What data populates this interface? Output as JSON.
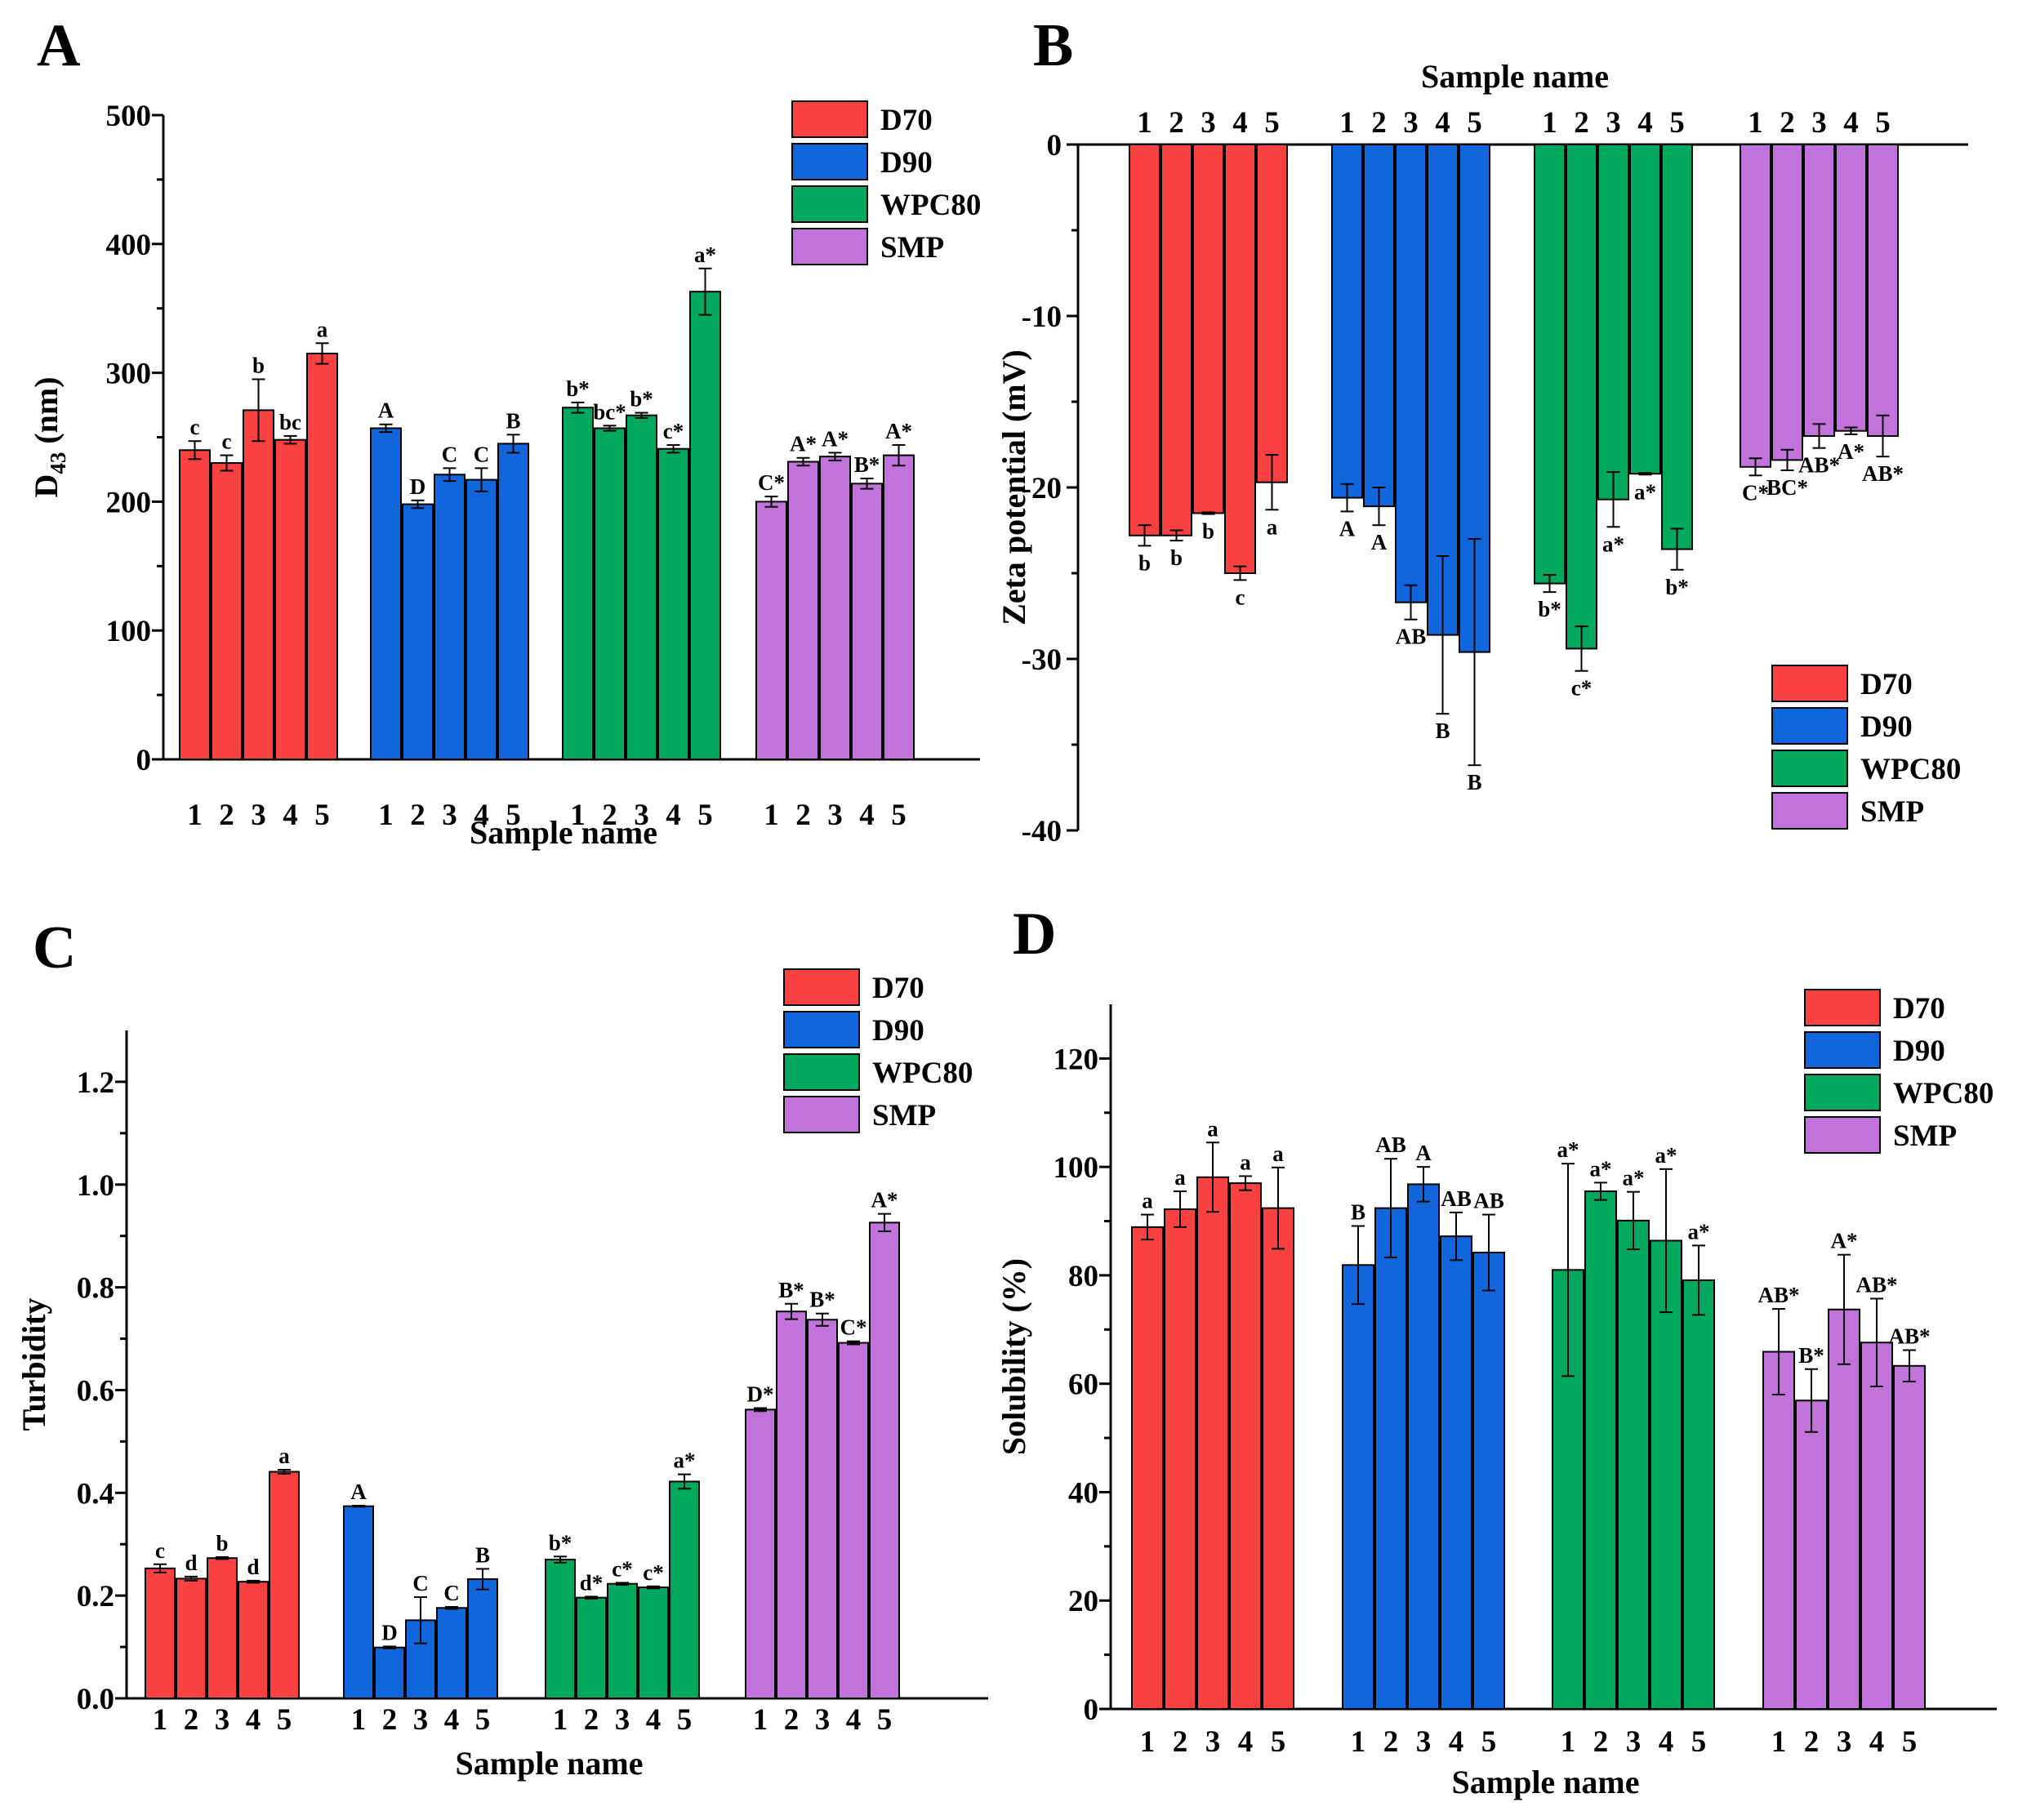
{
  "colors": {
    "D70": "#fa4141",
    "D90": "#1166dc",
    "WPC80": "#03a85f",
    "SMP": "#c273db"
  },
  "chart_data": [
    {
      "panel": "A",
      "type": "bar",
      "xlabel": "Sample name",
      "ylabel_main": "D",
      "ylabel_sub": "43",
      "ylabel_unit": " (nm)",
      "ylim": [
        0,
        500
      ],
      "yticks": [
        "0",
        "100",
        "200",
        "300",
        "400",
        "500"
      ],
      "categories": [
        "1",
        "2",
        "3",
        "4",
        "5"
      ],
      "legend": {
        "placement": "top-right",
        "entries": [
          "D70",
          "D90",
          "WPC80",
          "SMP"
        ]
      },
      "series": [
        {
          "name": "D70",
          "values": [
            240,
            230,
            271,
            248,
            315
          ],
          "errors": [
            7,
            6,
            24,
            3,
            8
          ],
          "letters": [
            "c",
            "c",
            "b",
            "bc",
            "a"
          ]
        },
        {
          "name": "D90",
          "values": [
            257,
            198,
            221,
            217,
            245
          ],
          "errors": [
            3,
            3,
            5,
            9,
            7
          ],
          "letters": [
            "A",
            "D",
            "C",
            "C",
            "B"
          ]
        },
        {
          "name": "WPC80",
          "values": [
            273,
            257,
            267,
            241,
            363
          ],
          "errors": [
            4,
            2,
            2,
            3,
            18
          ],
          "letters": [
            "b*",
            "bc*",
            "b*",
            "c*",
            "a*"
          ]
        },
        {
          "name": "SMP",
          "values": [
            200,
            231,
            235,
            214,
            236
          ],
          "errors": [
            4,
            3,
            3,
            4,
            8
          ],
          "letters": [
            "C*",
            "A*",
            "A*",
            "B*",
            "A*"
          ]
        }
      ]
    },
    {
      "panel": "B",
      "type": "bar",
      "xlabel": "Sample name",
      "ylabel": "Zeta potential (mV)",
      "ylim": [
        -40,
        0
      ],
      "yticks": [
        "0",
        "-10",
        "-20",
        "-30",
        "-40"
      ],
      "categories": [
        "1",
        "2",
        "3",
        "4",
        "5"
      ],
      "legend": {
        "placement": "bottom-right",
        "entries": [
          "D70",
          "D90",
          "WPC80",
          "SMP"
        ]
      },
      "series": [
        {
          "name": "D70",
          "values": [
            -22.8,
            -22.8,
            -21.5,
            -25.0,
            -19.7
          ],
          "errors": [
            0.6,
            0.3,
            0.05,
            0.4,
            1.6
          ],
          "letters": [
            "b",
            "b",
            "b",
            "c",
            "a"
          ]
        },
        {
          "name": "D90",
          "values": [
            -20.6,
            -21.1,
            -26.7,
            -28.6,
            -29.6
          ],
          "errors": [
            0.8,
            1.1,
            1.0,
            4.6,
            6.6
          ],
          "letters": [
            "A",
            "A",
            "AB",
            "B",
            "B"
          ]
        },
        {
          "name": "WPC80",
          "values": [
            -25.6,
            -29.4,
            -20.7,
            -19.2,
            -23.6
          ],
          "errors": [
            0.5,
            1.3,
            1.6,
            0.05,
            1.2
          ],
          "letters": [
            "b*",
            "c*",
            "a*",
            "a*",
            "b*"
          ]
        },
        {
          "name": "SMP",
          "values": [
            -18.8,
            -18.4,
            -17.0,
            -16.7,
            -17.0
          ],
          "errors": [
            0.5,
            0.6,
            0.7,
            0.2,
            1.2
          ],
          "letters": [
            "C*",
            "BC*",
            "AB*",
            "A*",
            "AB*"
          ]
        }
      ]
    },
    {
      "panel": "C",
      "type": "bar",
      "xlabel": "Sample name",
      "ylabel": "Turbidity",
      "ylim": [
        0,
        1.3
      ],
      "yticks": [
        "0.0",
        "0.2",
        "0.4",
        "0.6",
        "0.8",
        "1.0",
        "1.2"
      ],
      "categories": [
        "1",
        "2",
        "3",
        "4",
        "5"
      ],
      "legend": {
        "placement": "top-right",
        "entries": [
          "D70",
          "D90",
          "WPC80",
          "SMP"
        ]
      },
      "series": [
        {
          "name": "D70",
          "values": [
            0.253,
            0.233,
            0.273,
            0.227,
            0.441
          ],
          "errors": [
            0.008,
            0.004,
            0.002,
            0.002,
            0.004
          ],
          "letters": [
            "c",
            "d",
            "b",
            "d",
            "a"
          ]
        },
        {
          "name": "D90",
          "values": [
            0.374,
            0.099,
            0.152,
            0.176,
            0.232
          ],
          "errors": [
            0.001,
            0.002,
            0.045,
            0.002,
            0.02
          ],
          "letters": [
            "A",
            "D",
            "C",
            "C",
            "B"
          ]
        },
        {
          "name": "WPC80",
          "values": [
            0.27,
            0.196,
            0.223,
            0.216,
            0.422
          ],
          "errors": [
            0.006,
            0.002,
            0.002,
            0.002,
            0.014
          ],
          "letters": [
            "b*",
            "d*",
            "c*",
            "c*",
            "a*"
          ]
        },
        {
          "name": "SMP",
          "values": [
            0.562,
            0.753,
            0.737,
            0.692,
            0.926
          ],
          "errors": [
            0.003,
            0.015,
            0.012,
            0.003,
            0.017
          ],
          "letters": [
            "D*",
            "B*",
            "B*",
            "C*",
            "A*"
          ]
        }
      ]
    },
    {
      "panel": "D",
      "type": "bar",
      "xlabel": "Sample name",
      "ylabel": "Solubility (%)",
      "ylim": [
        0,
        130
      ],
      "yticks": [
        "0",
        "20",
        "40",
        "60",
        "80",
        "100",
        "120"
      ],
      "categories": [
        "1",
        "2",
        "3",
        "4",
        "5"
      ],
      "legend": {
        "placement": "top-right",
        "entries": [
          "D70",
          "D90",
          "WPC80",
          "SMP"
        ]
      },
      "series": [
        {
          "name": "D70",
          "values": [
            88.9,
            92.2,
            98.1,
            97.0,
            92.4
          ],
          "errors": [
            2.3,
            3.3,
            6.4,
            1.3,
            7.5
          ],
          "letters": [
            "a",
            "a",
            "a",
            "a",
            "a"
          ]
        },
        {
          "name": "D90",
          "values": [
            81.9,
            92.4,
            96.8,
            87.2,
            84.2
          ],
          "errors": [
            7.2,
            9.1,
            3.2,
            4.4,
            7.0
          ],
          "letters": [
            "B",
            "AB",
            "A",
            "AB",
            "AB"
          ]
        },
        {
          "name": "WPC80",
          "values": [
            81.0,
            95.5,
            90.1,
            86.4,
            79.1
          ],
          "errors": [
            19.6,
            1.6,
            5.3,
            13.2,
            6.4
          ],
          "letters": [
            "a*",
            "a*",
            "a*",
            "a*",
            "a*"
          ]
        },
        {
          "name": "SMP",
          "values": [
            65.9,
            56.9,
            73.7,
            67.6,
            63.3
          ],
          "errors": [
            7.9,
            5.8,
            10.1,
            8.1,
            2.9
          ],
          "letters": [
            "AB*",
            "B*",
            "A*",
            "AB*",
            "AB*"
          ]
        }
      ]
    }
  ]
}
